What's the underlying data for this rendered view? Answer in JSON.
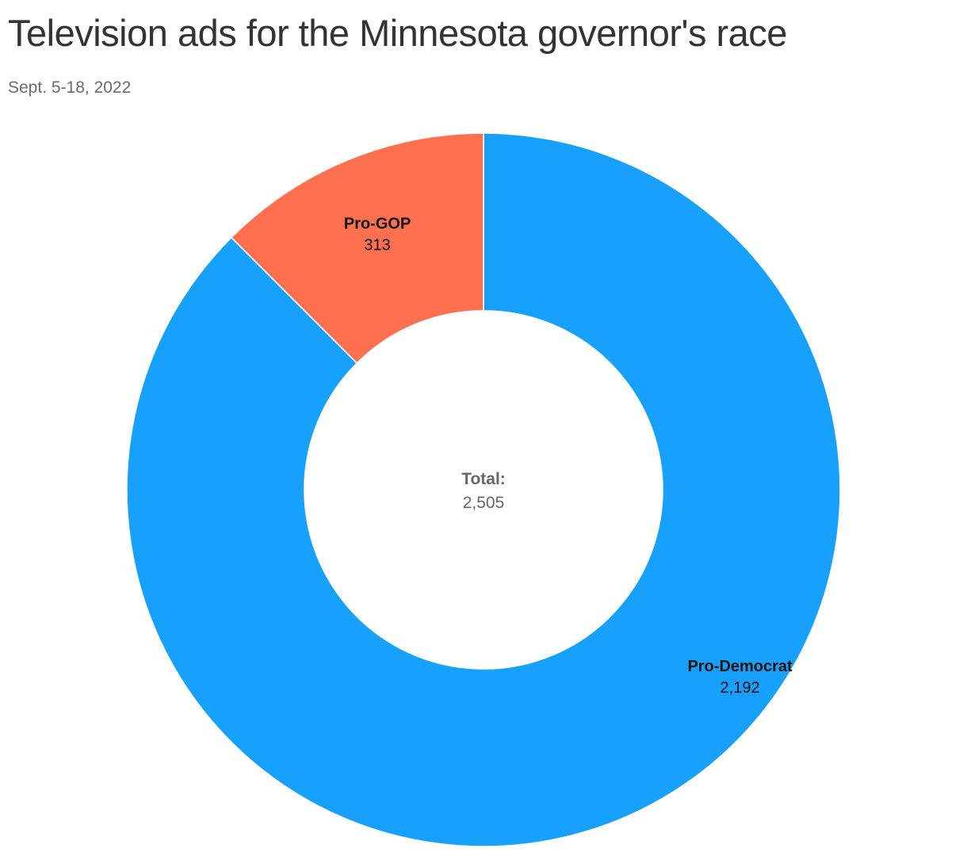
{
  "title": "Television ads for the Minnesota governor's race",
  "subtitle": "Sept. 5-18, 2022",
  "colors": {
    "pro_democrat": "#18a0ff",
    "pro_gop": "#ff7050",
    "center_text": "#666666",
    "label_text": "#111111"
  },
  "chart_data": {
    "type": "pie",
    "variant": "donut",
    "slices": [
      {
        "label": "Pro-Democrat",
        "value": 2192,
        "value_label": "2,192",
        "color": "#18a0ff"
      },
      {
        "label": "Pro-GOP",
        "value": 313,
        "value_label": "313",
        "color": "#ff7050"
      }
    ],
    "center": {
      "label": "Total:",
      "value": 2505,
      "value_label": "2,505"
    },
    "legend": "none"
  }
}
